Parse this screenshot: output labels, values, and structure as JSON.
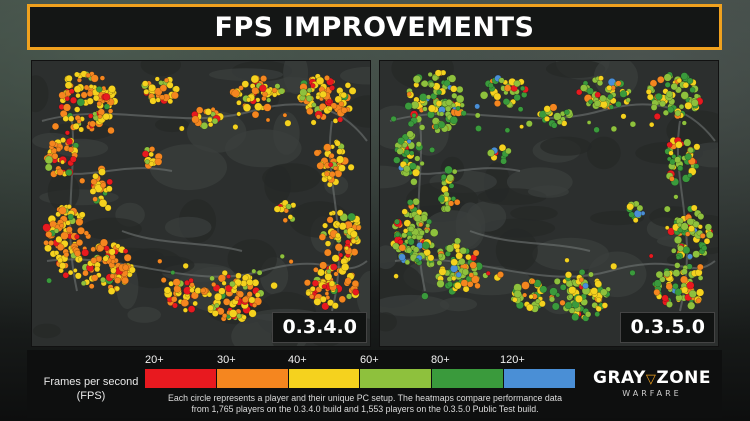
{
  "title": "FPS IMPROVEMENTS",
  "maps": [
    {
      "version": "0.3.4.0"
    },
    {
      "version": "0.3.5.0"
    }
  ],
  "legend": {
    "label_line1": "Frames per second",
    "label_line2": "(FPS)",
    "ticks": [
      "20+",
      "30+",
      "40+",
      "60+",
      "80+",
      "120+"
    ],
    "colors": [
      "#e8191f",
      "#f5861f",
      "#f5d21e",
      "#8ec13d",
      "#3a9a3c",
      "#4a8fd6"
    ]
  },
  "footnote": {
    "line1": "Each circle represents a player and their unique PC setup. The heatmaps compare performance data",
    "line2": "from 1,765 players on the 0.3.4.0 build and 1,553 players on the 0.3.5.0 Public Test build."
  },
  "logo": {
    "part1": "GRAY",
    "part2": "ZONE",
    "chevron": "▽",
    "sub": "WARFARE"
  },
  "colors": {
    "accent": "#f0a11e"
  }
}
